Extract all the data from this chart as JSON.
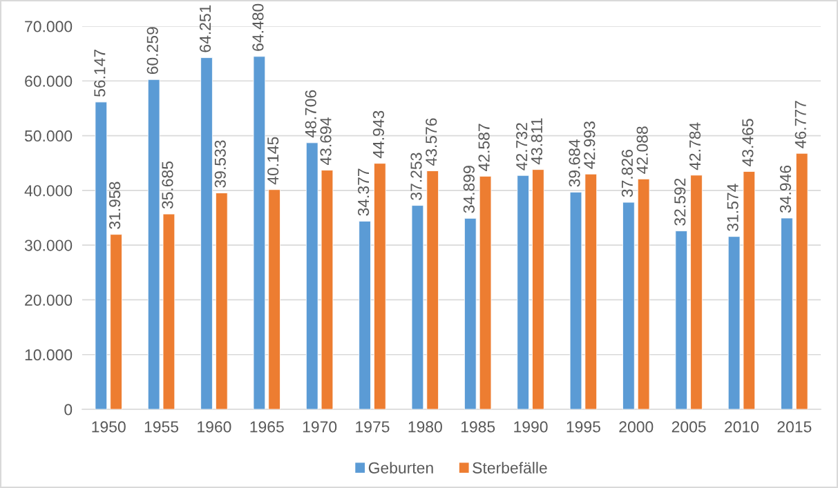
{
  "chart_data": {
    "type": "bar",
    "categories": [
      "1950",
      "1955",
      "1960",
      "1965",
      "1970",
      "1975",
      "1980",
      "1985",
      "1990",
      "1995",
      "2000",
      "2005",
      "2010",
      "2015"
    ],
    "series": [
      {
        "name": "Geburten",
        "color": "#5b9bd5",
        "values": [
          56147,
          60259,
          64251,
          64480,
          48706,
          34377,
          37253,
          34899,
          42732,
          39684,
          37826,
          32592,
          31574,
          34946
        ],
        "value_labels": [
          "56.147",
          "60.259",
          "64.251",
          "64.480",
          "48.706",
          "34.377",
          "37.253",
          "34.899",
          "42.732",
          "39.684",
          "37.826",
          "32.592",
          "31.574",
          "34.946"
        ]
      },
      {
        "name": "Sterbefälle",
        "color": "#ed7d31",
        "values": [
          31958,
          35685,
          39533,
          40145,
          43694,
          44943,
          43576,
          42587,
          43811,
          42993,
          42088,
          42784,
          43465,
          46777
        ],
        "value_labels": [
          "31.958",
          "35.685",
          "39.533",
          "40.145",
          "43.694",
          "44.943",
          "43.576",
          "42.587",
          "43.811",
          "42.993",
          "42.088",
          "42.784",
          "43.465",
          "46.777"
        ]
      }
    ],
    "ylim": [
      0,
      70000
    ],
    "yticks": [
      0,
      {
        "value": 10000,
        "label": "10.000"
      },
      {
        "value": 20000,
        "label": "20.000"
      },
      {
        "value": 30000,
        "label": "30.000"
      },
      {
        "value": 40000,
        "label": "40.000"
      },
      {
        "value": 50000,
        "label": "50.000"
      },
      {
        "value": 60000,
        "label": "60.000"
      },
      {
        "value": 70000,
        "label": "70.000"
      }
    ],
    "grid": "y",
    "legend": "bottom"
  }
}
